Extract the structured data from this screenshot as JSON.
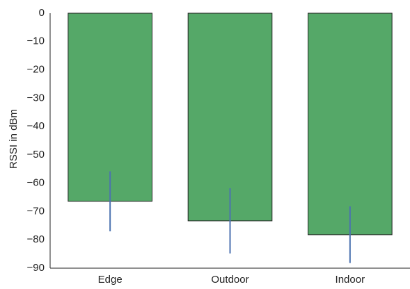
{
  "chart_data": {
    "type": "bar",
    "ylabel": "RSSI in dBm",
    "categories": [
      "Edge",
      "Outdoor",
      "Indoor"
    ],
    "values": [
      -66.4,
      -73.3,
      -78.2
    ],
    "errors": [
      10.6,
      11.5,
      10.0
    ],
    "color": "#55a868",
    "error_color": "#4c72b0",
    "ylim": [
      -90,
      0
    ],
    "yticks": [
      0,
      {
        "value": -10,
        "label": "−10"
      },
      {
        "value": -20,
        "label": "−20"
      },
      {
        "value": -30,
        "label": "−30"
      },
      {
        "value": -40,
        "label": "−40"
      },
      {
        "value": -50,
        "label": "−50"
      },
      {
        "value": -60,
        "label": "−60"
      },
      {
        "value": -70,
        "label": "−70"
      },
      {
        "value": -80,
        "label": "−80"
      },
      {
        "value": -90,
        "label": "−90"
      }
    ],
    "grid": false
  }
}
